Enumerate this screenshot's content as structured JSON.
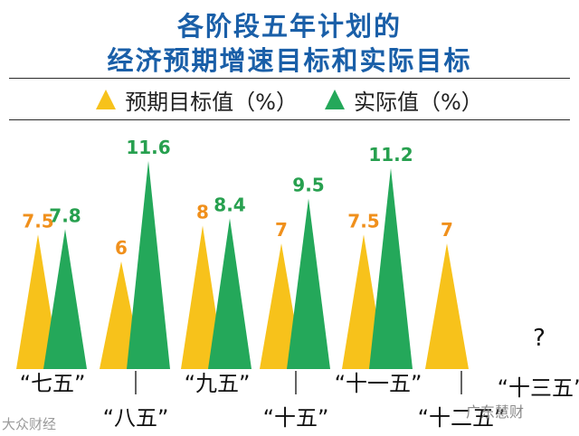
{
  "title_line1": "各阶段五年计划的",
  "title_line2": "经济预期增速目标和实际目标",
  "legend": {
    "expected": "预期目标值（%）",
    "actual": "实际值（%）"
  },
  "watermark_left": "大众财经",
  "watermark_right": "广东慧财",
  "colors": {
    "expected": "#f7c21b",
    "actual": "#24a85a",
    "expected_label": "#f0901c",
    "actual_label": "#27a04f",
    "title": "#1a5fa8"
  },
  "chart_data": {
    "type": "bar",
    "categories": [
      "“七五”",
      "“八五”",
      "“九五”",
      "“十五”",
      "“十一五”",
      "“十二五”",
      "“十三五”"
    ],
    "series": [
      {
        "name": "预期目标值（%）",
        "values": [
          7.5,
          6,
          8,
          7,
          7.5,
          7,
          null
        ]
      },
      {
        "name": "实际值（%）",
        "values": [
          7.8,
          11.6,
          8.4,
          9.5,
          11.2,
          null,
          null
        ]
      }
    ],
    "value_labels": {
      "expected": [
        "7.5",
        "6",
        "8",
        "7",
        "7.5",
        "7",
        ""
      ],
      "actual": [
        "7.8",
        "11.6",
        "8.4",
        "9.5",
        "11.2",
        "",
        ""
      ]
    },
    "unknown_marker": "?",
    "unknown_index": 6,
    "ylim": [
      0,
      12
    ]
  }
}
